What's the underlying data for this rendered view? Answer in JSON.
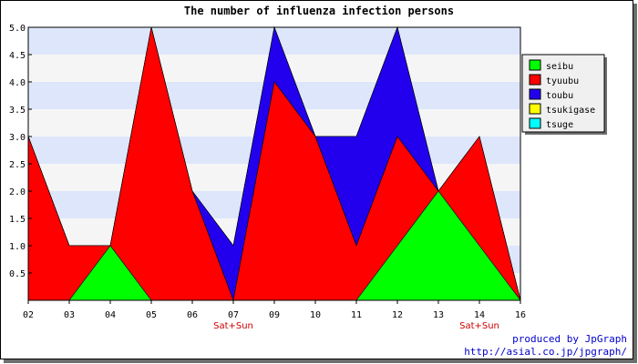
{
  "chart_data": {
    "type": "area",
    "title": "The number of influenza infection persons",
    "xlabel": "",
    "ylabel": "",
    "categories": [
      "02",
      "03",
      "04",
      "05",
      "06",
      "07",
      "09",
      "10",
      "11",
      "12",
      "13",
      "14",
      "16"
    ],
    "sublabels": [
      "",
      "",
      "",
      "",
      "",
      "Sat+Sun",
      "",
      "",
      "",
      "",
      "",
      "Sat+Sun",
      ""
    ],
    "ylim": [
      0,
      5
    ],
    "yticks": [
      "0.5",
      "1.0",
      "1.5",
      "2.0",
      "2.5",
      "3.0",
      "3.5",
      "4.0",
      "4.5",
      "5.0"
    ],
    "stacked": true,
    "series": [
      {
        "name": "seibu",
        "color": "#00ff00",
        "values": [
          0,
          0,
          1,
          0,
          0,
          0,
          0,
          0,
          0,
          1,
          2,
          1,
          0
        ]
      },
      {
        "name": "tyuubu",
        "color": "#ff0000",
        "values": [
          3,
          1,
          0,
          5,
          2,
          0,
          4,
          3,
          1,
          2,
          0,
          2,
          0
        ]
      },
      {
        "name": "toubu",
        "color": "#2200ee",
        "values": [
          0,
          0,
          0,
          0,
          0,
          1,
          1,
          0,
          2,
          2,
          0,
          0,
          0
        ]
      },
      {
        "name": "tsukigase",
        "color": "#ffff00",
        "values": [
          0,
          0,
          0,
          0,
          0,
          0,
          0,
          0,
          0,
          0,
          0,
          0,
          0
        ]
      },
      {
        "name": "tsuge",
        "color": "#00ffff",
        "values": [
          0,
          0,
          0,
          0,
          0,
          0,
          0,
          0,
          0,
          0,
          0,
          0,
          0
        ]
      }
    ],
    "grid": true,
    "legend_position": "top-right"
  },
  "footer": {
    "credit": "produced by JpGraph",
    "url": "http://asial.co.jp/jpgraph/"
  }
}
